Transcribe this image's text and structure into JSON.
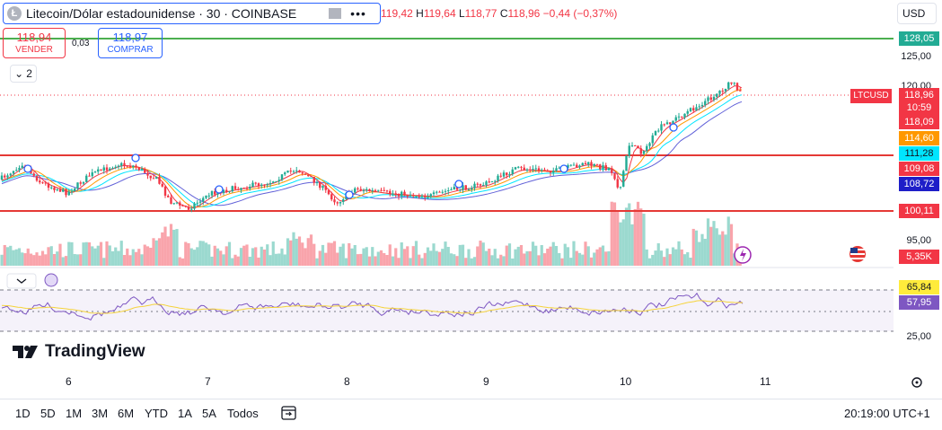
{
  "header": {
    "symbol_title": "Litecoin/Dólar estadounidense · 30 · COINBASE",
    "coin_glyph": "Ł",
    "more_dots": "•••",
    "ohlc": {
      "o_val": "119,42",
      "h_key": "H",
      "h_val": "119,64",
      "l_key": "L",
      "l_val": "118,77",
      "c_key": "C",
      "c_val": "118,96",
      "change": "−0,44 (−0,37%)"
    },
    "currency": "USD"
  },
  "trade": {
    "sell_price": "118,94",
    "sell_label": "VENDER",
    "spread": "0,03",
    "buy_price": "118,97",
    "buy_label": "COMPRAR"
  },
  "indicators_toggle": {
    "chevron": "⌄",
    "count": "2"
  },
  "price_axis": {
    "labels": [
      "125,00",
      "120,00",
      "95,00",
      "25,00"
    ],
    "tags": [
      {
        "value": "128,05",
        "color": "#22ab94",
        "text_color": "#ffffff"
      },
      {
        "value": "118,96",
        "color": "#f23645",
        "text_color": "#ffffff"
      },
      {
        "value": "10:59",
        "color": "#f23645",
        "text_color": "#ffffff"
      },
      {
        "value": "118,09",
        "color": "#f23645",
        "text_color": "#ffffff"
      },
      {
        "value": "114,60",
        "color": "#ff9800",
        "text_color": "#ffffff"
      },
      {
        "value": "111,28",
        "color": "#00e5ff",
        "text_color": "#131722"
      },
      {
        "value": "109,08",
        "color": "#f23645",
        "text_color": "#ffffff"
      },
      {
        "value": "108,72",
        "color": "#1e1ec8",
        "text_color": "#ffffff"
      },
      {
        "value": "100,11",
        "color": "#f23645",
        "text_color": "#ffffff"
      },
      {
        "value": "5,35K",
        "color": "#f23645",
        "text_color": "#ffffff"
      },
      {
        "value": "65,84",
        "color": "#ffeb3b",
        "text_color": "#131722"
      },
      {
        "value": "57,95",
        "color": "#7e57c2",
        "text_color": "#ffffff"
      }
    ],
    "symbol_tag": "LTCUSD"
  },
  "time_axis": [
    "6",
    "7",
    "8",
    "9",
    "10",
    "11"
  ],
  "branding": {
    "logo_text": "TradingView"
  },
  "bottom_bar": {
    "ranges": [
      "1D",
      "5D",
      "1M",
      "3M",
      "6M",
      "YTD",
      "1A",
      "5A",
      "Todos"
    ],
    "clock": "20:19:00 UTC+1"
  },
  "colors": {
    "up": "#22ab94",
    "down": "#f23645",
    "accent": "#2962ff",
    "hline_green": "#4caf50"
  }
}
